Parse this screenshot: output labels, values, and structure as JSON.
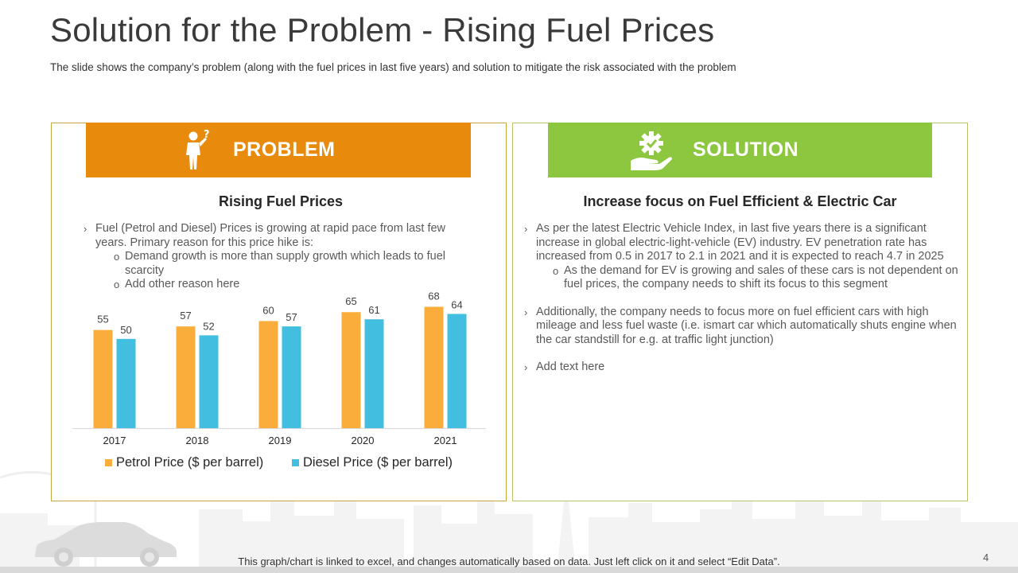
{
  "slide": {
    "title": "Solution for the Problem - Rising Fuel Prices",
    "subtitle": "The slide shows the company’s problem (along with the fuel prices in last five years) and solution to mitigate the risk associated with the problem",
    "footer_note": "This graph/chart is linked to excel, and changes automatically based on data. Just left click on it and select “Edit Data”.",
    "page_number": "4"
  },
  "problem": {
    "banner_label": "PROBLEM",
    "icon": "person-question-icon",
    "heading": "Rising Fuel Prices",
    "bullet_1": "Fuel (Petrol and Diesel) Prices is growing at rapid pace from last few years. Primary reason for this price hike is:",
    "sub_bullets": [
      "Demand growth is more than supply growth which leads to fuel scarcity",
      "Add other reason here"
    ]
  },
  "solution": {
    "banner_label": "SOLUTION",
    "icon": "gear-hand-icon",
    "heading": "Increase focus on Fuel Efficient & Electric Car",
    "bullet_1": "As per the latest Electric Vehicle Index, in last five years there is a significant increase in global electric-light-vehicle (EV) industry. EV penetration rate has increased from 0.5 in 2017 to 2.1 in 2021 and it is expected to reach 4.7 in 2025",
    "sub_bullet_1": "As the demand for EV is growing and sales of these cars is not dependent on fuel prices, the company needs to shift its focus to this segment",
    "bullet_2": "Additionally, the company needs to focus more on fuel efficient cars with high mileage and less fuel waste (i.e. ismart car which automatically shuts engine when the car standstill for e.g. at traffic light junction)",
    "bullet_3": "Add text here"
  },
  "colors": {
    "problem_accent": "#e88b0c",
    "solution_accent": "#8dc63f",
    "petrol": "#fbad3c",
    "diesel": "#42bfe0"
  },
  "chart_data": {
    "type": "bar",
    "title": "",
    "categories": [
      "2017",
      "2018",
      "2019",
      "2020",
      "2021"
    ],
    "series": [
      {
        "name": "Petrol Price ($ per barrel)",
        "values": [
          55,
          57,
          60,
          65,
          68
        ]
      },
      {
        "name": "Diesel Price ($ per barrel)",
        "values": [
          50,
          52,
          57,
          61,
          64
        ]
      }
    ],
    "xlabel": "",
    "ylabel": "",
    "ylim": [
      0,
      70
    ],
    "grid": false,
    "legend": "bottom"
  }
}
